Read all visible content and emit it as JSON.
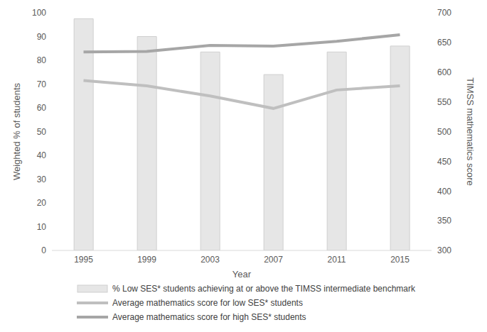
{
  "chart_data": {
    "type": "bar",
    "x_label": "Year",
    "y_label": "Weighted % of students",
    "y2_label": "TIMSS mathematics score",
    "categories": [
      "1995",
      "1999",
      "2003",
      "2007",
      "2011",
      "2015"
    ],
    "series": [
      {
        "name": "% Low SES* students achieving at or above the TIMSS intermediate benchmark",
        "type": "bar",
        "color": "#e6e6e6",
        "values": [
          97.5,
          90,
          83.5,
          74,
          83.5,
          86
        ]
      },
      {
        "name": "Average mathematics score for low SES* students",
        "type": "line",
        "axis": "y2",
        "color": "#bfbfbf",
        "values": [
          586,
          577,
          560,
          539,
          570,
          577
        ]
      },
      {
        "name": "Average mathematics score for high SES* students",
        "type": "line",
        "axis": "y2",
        "color": "#a6a6a6",
        "values": [
          634,
          635,
          645,
          644,
          652,
          663
        ]
      }
    ],
    "ylim": [
      0,
      100
    ],
    "yticks": [
      0,
      10,
      20,
      30,
      40,
      50,
      60,
      70,
      80,
      90,
      100
    ],
    "y2lim": [
      300,
      700
    ],
    "y2ticks": [
      300,
      350,
      400,
      450,
      500,
      550,
      600,
      650,
      700
    ],
    "grid": false,
    "legend": "bottom"
  }
}
